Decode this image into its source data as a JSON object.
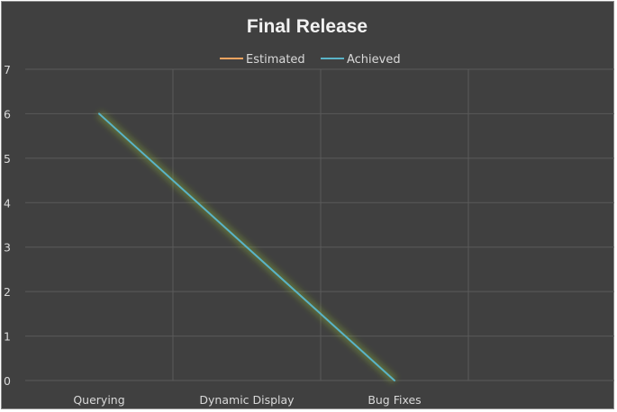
{
  "chart_data": {
    "type": "line",
    "title": "Final Release",
    "categories": [
      "Querying",
      "Dynamic Display",
      "Bug Fixes"
    ],
    "series": [
      {
        "name": "Estimated",
        "values": [
          null,
          null,
          null
        ],
        "color": "#f4a460"
      },
      {
        "name": "Achieved",
        "values": [
          6,
          3,
          0
        ],
        "color": "#5ab4c8"
      }
    ],
    "ylim": [
      0,
      7
    ],
    "yticks": [
      "0",
      "1",
      "2",
      "3",
      "4",
      "5",
      "6",
      "7"
    ],
    "grid": true,
    "legend_position": "top",
    "colors": {
      "background": "#404040",
      "grid": "#5a5a5a",
      "text": "#d9d9d9",
      "glow": "#9acd32"
    }
  }
}
